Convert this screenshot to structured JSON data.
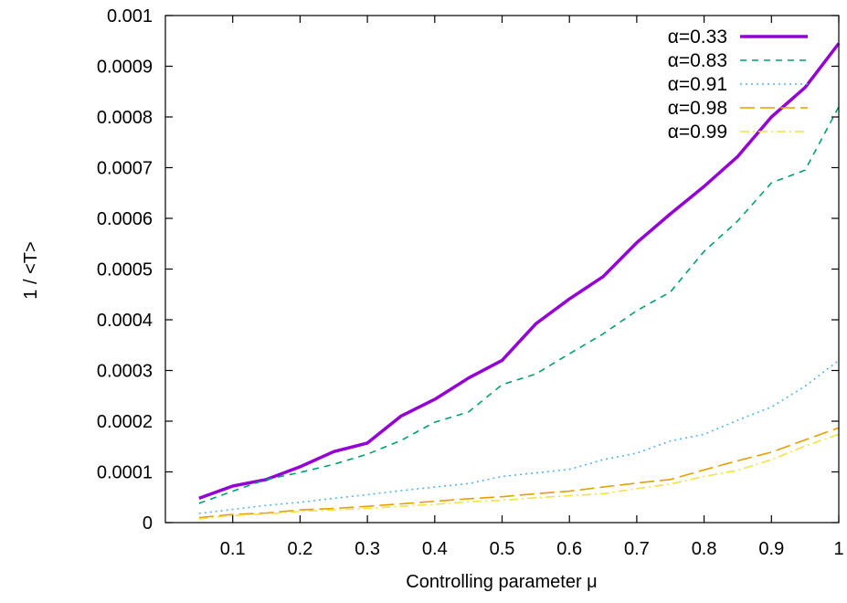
{
  "chart_data": {
    "type": "line",
    "title": "",
    "xlabel": "Controlling parameter μ",
    "ylabel": "1 / <T>",
    "xlim": [
      0,
      1
    ],
    "ylim": [
      0,
      0.001
    ],
    "grid": false,
    "legend_position": "top-right",
    "x_ticks": [
      0.1,
      0.2,
      0.3,
      0.4,
      0.5,
      0.6,
      0.7,
      0.8,
      0.9,
      1
    ],
    "x_tick_labels": [
      "0.1",
      "0.2",
      "0.3",
      "0.4",
      "0.5",
      "0.6",
      "0.7",
      "0.8",
      "0.9",
      "1"
    ],
    "y_ticks": [
      0,
      0.0001,
      0.0002,
      0.0003,
      0.0004,
      0.0005,
      0.0006,
      0.0007,
      0.0008,
      0.0009,
      0.001
    ],
    "y_tick_labels": [
      "0",
      "0.0001",
      "0.0002",
      "0.0003",
      "0.0004",
      "0.0005",
      "0.0006",
      "0.0007",
      "0.0008",
      "0.0009",
      "0.001"
    ],
    "x": [
      0.05,
      0.1,
      0.15,
      0.2,
      0.25,
      0.3,
      0.35,
      0.4,
      0.45,
      0.5,
      0.55,
      0.6,
      0.65,
      0.7,
      0.75,
      0.8,
      0.85,
      0.9,
      0.95,
      1.0
    ],
    "series": [
      {
        "name": "α=0.33",
        "color": "#9400d3",
        "style": "solid",
        "values": [
          4.8e-05,
          7.2e-05,
          8.5e-05,
          0.00011,
          0.00014,
          0.000157,
          0.00021,
          0.000243,
          0.000285,
          0.00032,
          0.000392,
          0.000441,
          0.000485,
          0.000552,
          0.000609,
          0.000663,
          0.000722,
          0.0008,
          0.000858,
          0.000945
        ]
      },
      {
        "name": "α=0.83",
        "color": "#009e73",
        "style": "dashed",
        "values": [
          3.8e-05,
          6.2e-05,
          8.5e-05,
          9.9e-05,
          0.000115,
          0.000135,
          0.000162,
          0.000198,
          0.000218,
          0.000272,
          0.000293,
          0.000333,
          0.000372,
          0.000418,
          0.000455,
          0.000535,
          0.000595,
          0.00067,
          0.000695,
          0.00082
        ]
      },
      {
        "name": "α=0.91",
        "color": "#56b4e9",
        "style": "dotted",
        "values": [
          1.8e-05,
          2.6e-05,
          3.4e-05,
          4e-05,
          4.8e-05,
          5.5e-05,
          6.3e-05,
          7e-05,
          7.7e-05,
          9.1e-05,
          9.8e-05,
          0.000105,
          0.000124,
          0.000137,
          0.000161,
          0.000174,
          0.000202,
          0.000228,
          0.000269,
          0.00032
        ]
      },
      {
        "name": "α=0.98",
        "color": "#e69f00",
        "style": "longdash",
        "values": [
          1e-05,
          1.6e-05,
          1.9e-05,
          2.5e-05,
          2.8e-05,
          3.2e-05,
          3.7e-05,
          4.2e-05,
          4.7e-05,
          5.1e-05,
          5.7e-05,
          6.2e-05,
          7e-05,
          7.8e-05,
          8.5e-05,
          0.000104,
          0.000122,
          0.000139,
          0.000163,
          0.000187
        ]
      },
      {
        "name": "α=0.99",
        "color": "#f0e442",
        "style": "dashdot",
        "values": [
          7e-06,
          1.4e-05,
          1.7e-05,
          2.2e-05,
          2.5e-05,
          2.8e-05,
          3.2e-05,
          3.6e-05,
          4.1e-05,
          4.4e-05,
          4.9e-05,
          5.3e-05,
          5.7e-05,
          6.7e-05,
          7.6e-05,
          9.1e-05,
          0.000103,
          0.000124,
          0.000151,
          0.000174
        ]
      }
    ]
  }
}
